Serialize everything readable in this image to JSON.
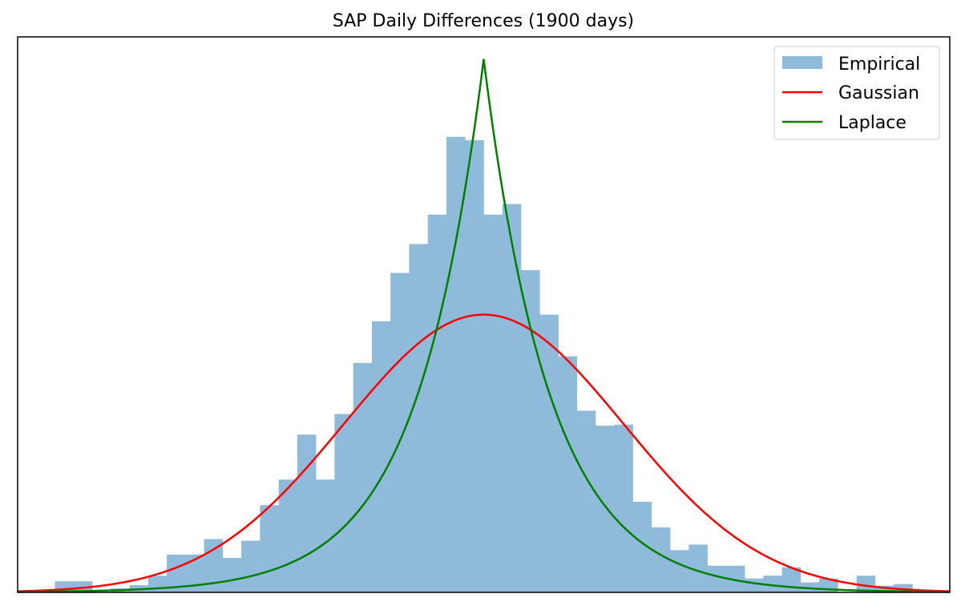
{
  "chart_data": {
    "type": "histogram",
    "title": "SAP Daily Differences (1900 days)",
    "xlabel": "",
    "ylabel": "",
    "x_ticks_visible": false,
    "y_ticks_visible": false,
    "grid": false,
    "legend_position": "top-right",
    "x_range": [
      -1.0,
      1.0
    ],
    "y_range": [
      0,
      1.0
    ],
    "colors": {
      "empirical": "#8fbad9",
      "gaussian": "#ff0000",
      "laplace": "#008000"
    },
    "histogram": {
      "name": "Empirical",
      "bin_start": -0.96,
      "bin_width": 0.04,
      "values": [
        0.003,
        0.02,
        0.02,
        0.0,
        0.007,
        0.013,
        0.03,
        0.068,
        0.068,
        0.096,
        0.062,
        0.093,
        0.157,
        0.203,
        0.284,
        0.203,
        0.321,
        0.413,
        0.488,
        0.575,
        0.627,
        0.68,
        0.82,
        0.814,
        0.68,
        0.699,
        0.58,
        0.5,
        0.425,
        0.327,
        0.3,
        0.302,
        0.163,
        0.117,
        0.076,
        0.086,
        0.048,
        0.048,
        0.025,
        0.03,
        0.045,
        0.018,
        0.025,
        0.0,
        0.03,
        0.012,
        0.015
      ]
    },
    "series": [
      {
        "name": "Gaussian",
        "type": "line",
        "function": "gaussian",
        "center": 0.0,
        "sigma": 0.3,
        "peak": 0.5
      },
      {
        "name": "Laplace",
        "type": "line",
        "function": "laplace",
        "center": 0.0,
        "scale": 0.143,
        "peak": 0.96
      }
    ]
  }
}
